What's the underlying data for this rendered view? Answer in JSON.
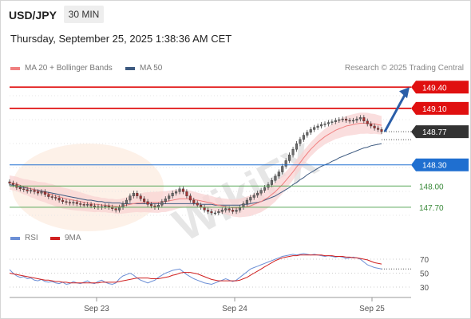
{
  "header": {
    "symbol": "USD/JPY",
    "timeframe": "30 MIN",
    "datetime": "Thursday, September 25, 2025 1:38:36 AM CET"
  },
  "legend": {
    "ma20_label": "MA 20 + Bollinger Bands",
    "ma50_label": "MA 50",
    "credit": "Research © 2025 Trading Central"
  },
  "rsi_legend": {
    "rsi_label": "RSI",
    "ma9_label": "9MA"
  },
  "watermark": "WikiFX",
  "colors": {
    "resistance": "#e01010",
    "support_blue": "#1f6fd0",
    "support_green": "#5aa85a",
    "current_price_bg": "#333333",
    "ma20": "#f08080",
    "ma50": "#3d5a80",
    "arrow": "#2a5ea8",
    "rsi": "#6c8fd6",
    "rsi_ma": "#d02020"
  },
  "chart_data": [
    {
      "type": "candlestick",
      "title": "USD/JPY",
      "xlabel": "",
      "ylabel": "",
      "x_ticks": [
        "Sep 23",
        "Sep 24",
        "Sep 25"
      ],
      "ylim": [
        147.45,
        149.55
      ],
      "grid": true,
      "current_price": 148.77,
      "levels": [
        {
          "value": 149.4,
          "label": "149.40",
          "kind": "resistance"
        },
        {
          "value": 149.1,
          "label": "149.10",
          "kind": "resistance"
        },
        {
          "value": 148.3,
          "label": "148.30",
          "kind": "support_blue"
        },
        {
          "value": 148.0,
          "label": "148.00",
          "kind": "support_green"
        },
        {
          "value": 147.7,
          "label": "147.70",
          "kind": "support_green"
        }
      ],
      "forecast_target": 149.4,
      "series_close": [
        148.04,
        148.02,
        147.98,
        147.96,
        147.95,
        147.93,
        147.94,
        147.92,
        147.9,
        147.92,
        147.88,
        147.85,
        147.84,
        147.83,
        147.8,
        147.78,
        147.77,
        147.76,
        147.77,
        147.75,
        147.74,
        147.73,
        147.74,
        147.72,
        147.71,
        147.7,
        147.71,
        147.72,
        147.7,
        147.68,
        147.66,
        147.7,
        147.75,
        147.8,
        147.86,
        147.9,
        147.86,
        147.82,
        147.78,
        147.74,
        147.72,
        147.7,
        147.73,
        147.78,
        147.82,
        147.86,
        147.9,
        147.92,
        147.96,
        147.92,
        147.86,
        147.8,
        147.76,
        147.73,
        147.7,
        147.66,
        147.64,
        147.62,
        147.62,
        147.64,
        147.66,
        147.68,
        147.66,
        147.64,
        147.66,
        147.7,
        147.75,
        147.8,
        147.84,
        147.87,
        147.9,
        147.94,
        147.98,
        148.02,
        148.08,
        148.14,
        148.2,
        148.28,
        148.36,
        148.44,
        148.52,
        148.6,
        148.66,
        148.72,
        148.76,
        148.8,
        148.83,
        148.85,
        148.87,
        148.88,
        148.9,
        148.91,
        148.93,
        148.94,
        148.95,
        148.93,
        148.92,
        148.93,
        148.95,
        148.97,
        148.92,
        148.88,
        148.85,
        148.82,
        148.8,
        148.77
      ],
      "ma20": [
        148.05,
        148.04,
        148.03,
        148.01,
        147.99,
        147.98,
        147.96,
        147.95,
        147.93,
        147.92,
        147.91,
        147.89,
        147.88,
        147.86,
        147.85,
        147.83,
        147.82,
        147.81,
        147.8,
        147.79,
        147.78,
        147.77,
        147.76,
        147.75,
        147.74,
        147.74,
        147.73,
        147.73,
        147.72,
        147.72,
        147.71,
        147.71,
        147.72,
        147.73,
        147.74,
        147.75,
        147.76,
        147.76,
        147.77,
        147.77,
        147.77,
        147.77,
        147.77,
        147.78,
        147.78,
        147.79,
        147.8,
        147.81,
        147.82,
        147.82,
        147.82,
        147.82,
        147.81,
        147.8,
        147.79,
        147.78,
        147.77,
        147.76,
        147.74,
        147.73,
        147.72,
        147.71,
        147.7,
        147.69,
        147.69,
        147.69,
        147.7,
        147.71,
        147.72,
        147.74,
        147.76,
        147.78,
        147.81,
        147.84,
        147.88,
        147.92,
        147.97,
        148.02,
        148.08,
        148.14,
        148.2,
        148.27,
        148.33,
        148.4,
        148.46,
        148.52,
        148.57,
        148.62,
        148.66,
        148.7,
        148.73,
        148.76,
        148.79,
        148.81,
        148.83,
        148.85,
        148.86,
        148.87,
        148.88,
        148.89,
        148.89,
        148.89,
        148.88,
        148.88,
        148.87,
        148.86
      ],
      "ma50": [
        148.02,
        148.01,
        148.0,
        147.99,
        147.98,
        147.97,
        147.96,
        147.95,
        147.94,
        147.93,
        147.92,
        147.91,
        147.9,
        147.89,
        147.88,
        147.87,
        147.86,
        147.85,
        147.84,
        147.83,
        147.82,
        147.81,
        147.8,
        147.8,
        147.79,
        147.78,
        147.78,
        147.77,
        147.77,
        147.76,
        147.76,
        147.76,
        147.75,
        147.75,
        147.75,
        147.75,
        147.75,
        147.75,
        147.75,
        147.75,
        147.75,
        147.75,
        147.75,
        147.75,
        147.75,
        147.75,
        147.75,
        147.75,
        147.75,
        147.75,
        147.75,
        147.75,
        147.75,
        147.75,
        147.74,
        147.74,
        147.74,
        147.74,
        147.73,
        147.73,
        147.73,
        147.73,
        147.73,
        147.73,
        147.73,
        147.73,
        147.74,
        147.74,
        147.75,
        147.76,
        147.77,
        147.78,
        147.8,
        147.82,
        147.84,
        147.86,
        147.89,
        147.92,
        147.95,
        147.98,
        148.02,
        148.05,
        148.09,
        148.12,
        148.16,
        148.19,
        148.22,
        148.25,
        148.28,
        148.3,
        148.32,
        148.35,
        148.37,
        148.4,
        148.42,
        148.44,
        148.46,
        148.48,
        148.5,
        148.52,
        148.54,
        148.55,
        148.57,
        148.58,
        148.59,
        148.6
      ]
    },
    {
      "type": "line",
      "title": "",
      "xlabel": "",
      "ylabel": "",
      "y_ticks": [
        70,
        50,
        30
      ],
      "ylim": [
        22,
        86
      ],
      "series": [
        {
          "name": "RSI",
          "values": [
            55,
            50,
            46,
            44,
            45,
            42,
            43,
            40,
            39,
            41,
            38,
            37,
            38,
            36,
            35,
            37,
            34,
            35,
            38,
            36,
            35,
            37,
            39,
            36,
            35,
            38,
            40,
            37,
            35,
            34,
            36,
            42,
            46,
            48,
            50,
            47,
            43,
            40,
            38,
            36,
            38,
            40,
            44,
            47,
            50,
            52,
            54,
            55,
            56,
            52,
            48,
            45,
            42,
            40,
            38,
            36,
            35,
            34,
            36,
            38,
            40,
            42,
            40,
            38,
            40,
            44,
            48,
            52,
            56,
            58,
            60,
            62,
            64,
            66,
            68,
            70,
            72,
            74,
            75,
            76,
            77,
            76,
            77,
            78,
            77,
            76,
            77,
            76,
            75,
            74,
            75,
            74,
            73,
            74,
            73,
            71,
            72,
            73,
            72,
            70,
            66,
            62,
            60,
            58,
            57,
            56
          ]
        },
        {
          "name": "9MA",
          "values": [
            50,
            49,
            48,
            47,
            46,
            45,
            44,
            43,
            42,
            41,
            40,
            40,
            39,
            38,
            38,
            37,
            37,
            36,
            36,
            36,
            36,
            36,
            36,
            36,
            36,
            36,
            37,
            37,
            37,
            37,
            37,
            38,
            39,
            40,
            41,
            42,
            43,
            43,
            43,
            43,
            42,
            42,
            42,
            43,
            44,
            45,
            47,
            48,
            50,
            51,
            51,
            51,
            50,
            49,
            47,
            45,
            43,
            41,
            40,
            39,
            39,
            39,
            39,
            39,
            39,
            40,
            42,
            44,
            47,
            50,
            53,
            56,
            59,
            62,
            65,
            68,
            70,
            72,
            73,
            74,
            75,
            75,
            76,
            76,
            76,
            76,
            76,
            76,
            76,
            75,
            75,
            75,
            74,
            74,
            74,
            73,
            73,
            72,
            72,
            71,
            70,
            69,
            67,
            65,
            64,
            63
          ]
        }
      ]
    }
  ]
}
